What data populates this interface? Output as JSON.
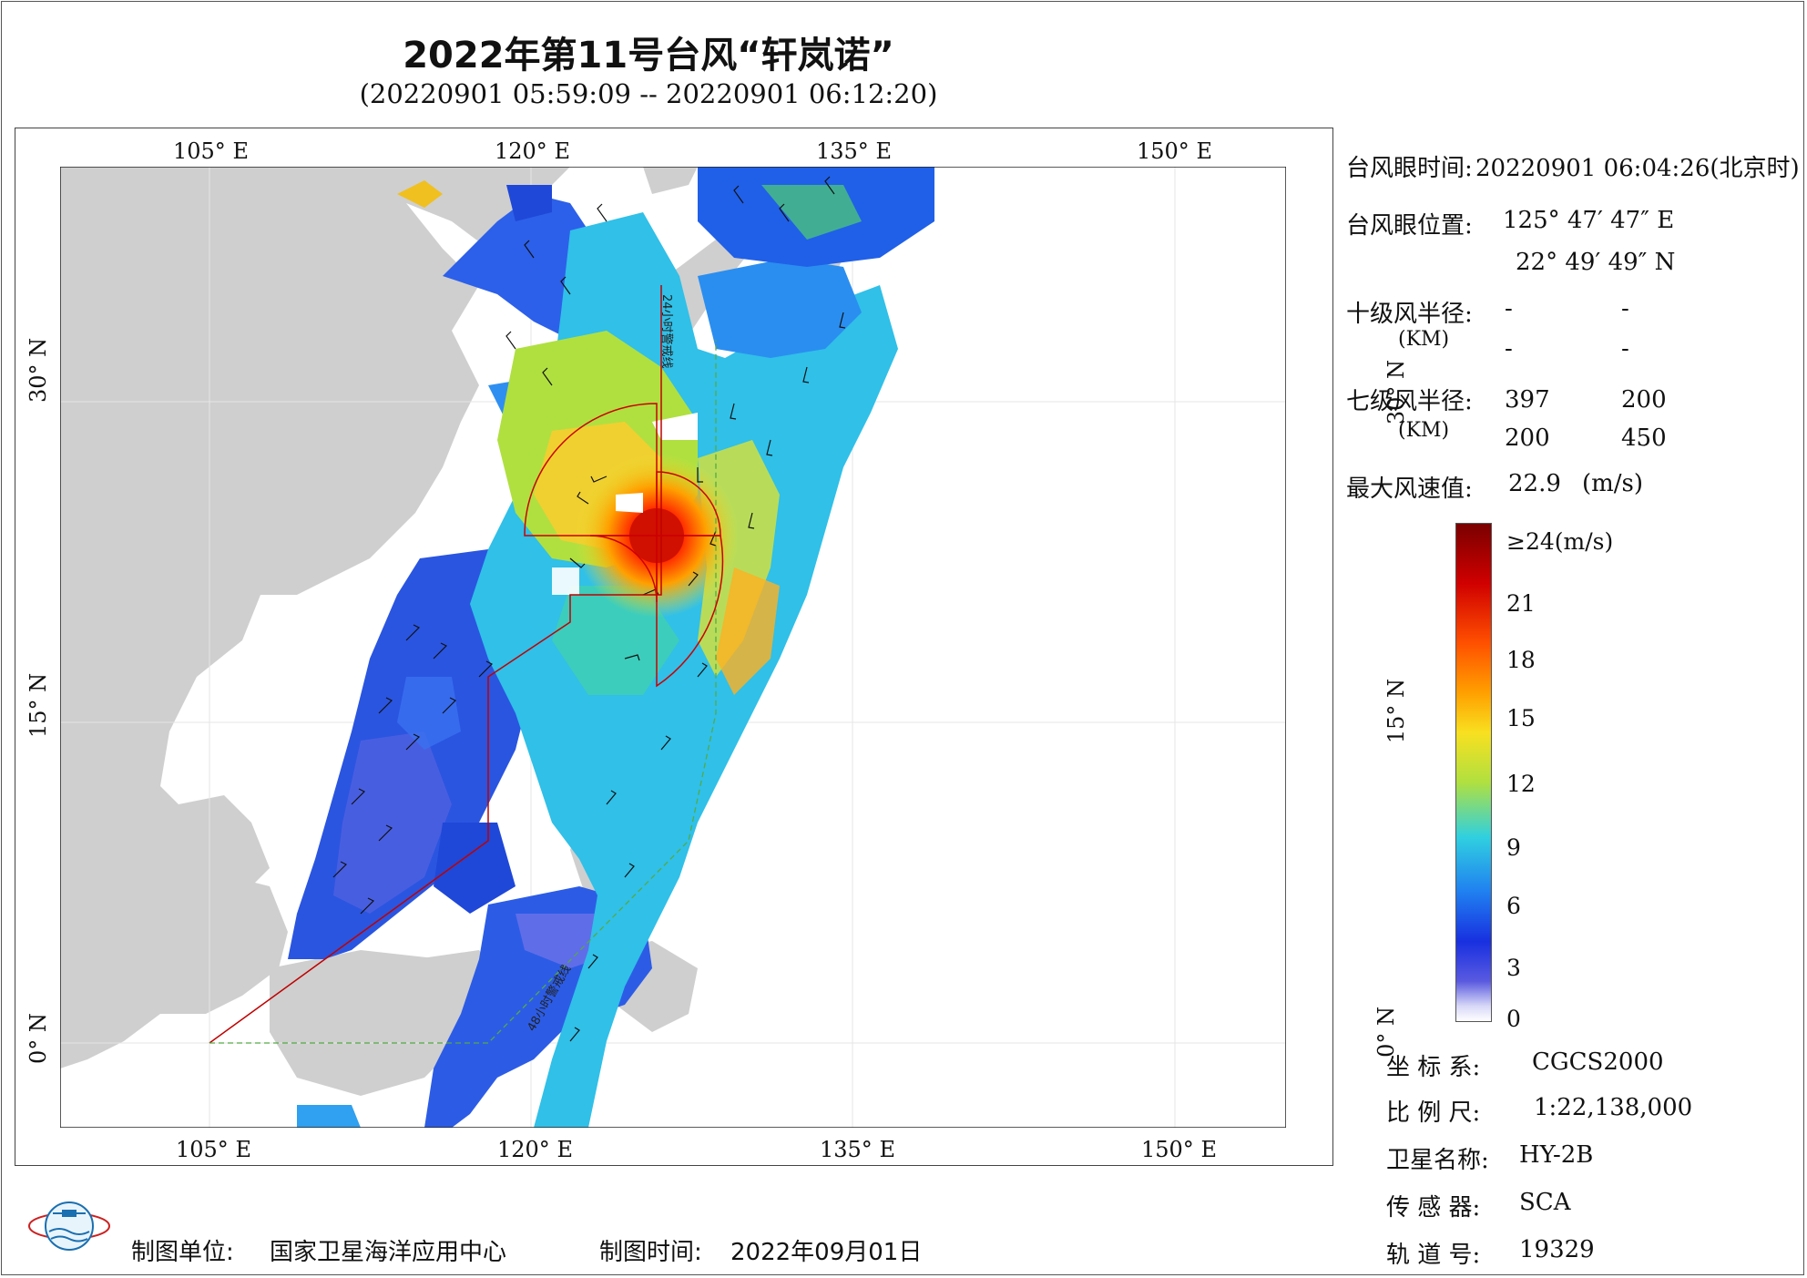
{
  "title": "2022年第11号台风“轩岚诺”",
  "subtitle": "(20220901 05:59:09 -- 20220901 06:12:20)",
  "map": {
    "lon_ticks": [
      "105° E",
      "120° E",
      "135° E",
      "150° E"
    ],
    "lat_ticks": [
      "30° N",
      "15° N",
      "0° N"
    ],
    "track_labels": [
      "24小时警戒线",
      "48小时警戒线"
    ],
    "colors": {
      "land": "#cfcfcf",
      "ocean": "#ffffff",
      "grid": "#e6e6e6",
      "warning_line": "#c00000",
      "warning_line_48": "#55aa44",
      "wind_radius": "#cc0000"
    }
  },
  "info": {
    "eye_time_label": "台风眼时间:",
    "eye_time_value": "20220901 06:04:26(北京时)",
    "eye_pos_label": "台风眼位置:",
    "eye_lon": "125° 47′ 47″ E",
    "eye_lat": "22° 49′ 49″ N",
    "r10_label": "十级风半径:",
    "r10_unit": "(KM)",
    "r10_values": [
      "-",
      "-",
      "-",
      "-"
    ],
    "r7_label": "七级风半径:",
    "r7_unit": "(KM)",
    "r7_values": [
      "397",
      "200",
      "200",
      "450"
    ],
    "max_wind_label": "最大风速值:",
    "max_wind_value": "22.9",
    "max_wind_unit": "(m/s)"
  },
  "legend": {
    "labels": [
      "≥24(m/s)",
      "21",
      "18",
      "15",
      "12",
      "9",
      "6",
      "3",
      "0"
    ],
    "colors": [
      "#7a0000",
      "#d00000",
      "#ff5000",
      "#ffc000",
      "#b0e040",
      "#30d0e0",
      "#2080f0",
      "#1830e0",
      "#d8d8f8"
    ]
  },
  "meta": {
    "crs_label": "坐 标 系:",
    "crs_value": "CGCS2000",
    "scale_label": "比 例 尺:",
    "scale_value": "1:22,138,000",
    "sat_label": "卫星名称:",
    "sat_value": "HY-2B",
    "sensor_label": "传 感 器:",
    "sensor_value": "SCA",
    "orbit_label": "轨 道 号:",
    "orbit_value": "19329"
  },
  "footer": {
    "org_label": "制图单位:",
    "org_value": "国家卫星海洋应用中心",
    "date_label": "制图时间:",
    "date_value": "2022年09月01日"
  }
}
